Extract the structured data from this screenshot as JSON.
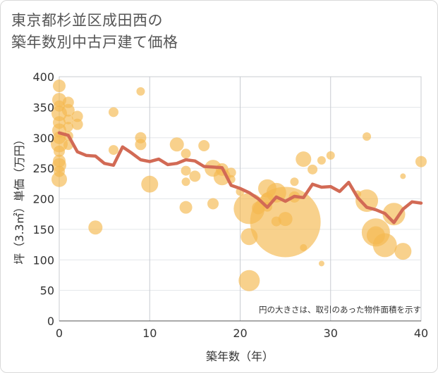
{
  "title_lines": [
    "東京都杉並区成田西の",
    "築年数別中古戸建て価格"
  ],
  "chart_data": {
    "type": "scatter",
    "xlabel": "築年数（年）",
    "ylabel": "坪（3.3㎡）単価（万円）",
    "xlim": [
      0,
      40
    ],
    "ylim": [
      0,
      400
    ],
    "xticks": [
      0,
      10,
      20,
      30,
      40
    ],
    "yticks": [
      0,
      50,
      100,
      150,
      200,
      250,
      300,
      350,
      400
    ],
    "grid": true,
    "annotation": "円の大きさは、取引のあった物件面積を示す",
    "bubble_color": "#f5b84f",
    "line_color": "#d26a55",
    "bubbles": [
      {
        "x": 0,
        "y": 385,
        "r": 9
      },
      {
        "x": 0,
        "y": 362,
        "r": 10
      },
      {
        "x": 0,
        "y": 352,
        "r": 8
      },
      {
        "x": 0,
        "y": 340,
        "r": 11
      },
      {
        "x": 0,
        "y": 325,
        "r": 9
      },
      {
        "x": 0,
        "y": 312,
        "r": 10
      },
      {
        "x": 0,
        "y": 300,
        "r": 9
      },
      {
        "x": 0,
        "y": 290,
        "r": 12
      },
      {
        "x": 0,
        "y": 278,
        "r": 8
      },
      {
        "x": 0,
        "y": 262,
        "r": 9
      },
      {
        "x": 0,
        "y": 255,
        "r": 10
      },
      {
        "x": 0,
        "y": 245,
        "r": 8
      },
      {
        "x": 0,
        "y": 232,
        "r": 11
      },
      {
        "x": 1,
        "y": 358,
        "r": 8
      },
      {
        "x": 1,
        "y": 345,
        "r": 9
      },
      {
        "x": 1,
        "y": 330,
        "r": 7
      },
      {
        "x": 1,
        "y": 318,
        "r": 7
      },
      {
        "x": 1,
        "y": 303,
        "r": 7
      },
      {
        "x": 1,
        "y": 288,
        "r": 7
      },
      {
        "x": 2,
        "y": 335,
        "r": 8
      },
      {
        "x": 2,
        "y": 322,
        "r": 8
      },
      {
        "x": 4,
        "y": 153,
        "r": 10
      },
      {
        "x": 6,
        "y": 342,
        "r": 7
      },
      {
        "x": 6,
        "y": 280,
        "r": 7
      },
      {
        "x": 9,
        "y": 376,
        "r": 6
      },
      {
        "x": 9,
        "y": 300,
        "r": 8
      },
      {
        "x": 9,
        "y": 289,
        "r": 8
      },
      {
        "x": 10,
        "y": 224,
        "r": 12
      },
      {
        "x": 13,
        "y": 289,
        "r": 10
      },
      {
        "x": 14,
        "y": 274,
        "r": 7
      },
      {
        "x": 14,
        "y": 246,
        "r": 7
      },
      {
        "x": 14,
        "y": 228,
        "r": 6
      },
      {
        "x": 14,
        "y": 186,
        "r": 9
      },
      {
        "x": 15,
        "y": 237,
        "r": 8
      },
      {
        "x": 16,
        "y": 287,
        "r": 8
      },
      {
        "x": 17,
        "y": 250,
        "r": 12
      },
      {
        "x": 17,
        "y": 192,
        "r": 8
      },
      {
        "x": 18,
        "y": 248,
        "r": 9
      },
      {
        "x": 18,
        "y": 236,
        "r": 12
      },
      {
        "x": 19,
        "y": 243,
        "r": 7
      },
      {
        "x": 19,
        "y": 232,
        "r": 6
      },
      {
        "x": 20,
        "y": 212,
        "r": 6
      },
      {
        "x": 21,
        "y": 184,
        "r": 22
      },
      {
        "x": 21,
        "y": 138,
        "r": 12
      },
      {
        "x": 21,
        "y": 66,
        "r": 15
      },
      {
        "x": 22,
        "y": 185,
        "r": 9
      },
      {
        "x": 23,
        "y": 217,
        "r": 13
      },
      {
        "x": 23,
        "y": 200,
        "r": 9
      },
      {
        "x": 23,
        "y": 187,
        "r": 7
      },
      {
        "x": 24,
        "y": 210,
        "r": 14
      },
      {
        "x": 24,
        "y": 163,
        "r": 7
      },
      {
        "x": 25,
        "y": 162,
        "r": 50
      },
      {
        "x": 25,
        "y": 167,
        "r": 10
      },
      {
        "x": 26,
        "y": 228,
        "r": 6
      },
      {
        "x": 26,
        "y": 203,
        "r": 8
      },
      {
        "x": 27,
        "y": 265,
        "r": 11
      },
      {
        "x": 27,
        "y": 120,
        "r": 5
      },
      {
        "x": 28,
        "y": 248,
        "r": 7
      },
      {
        "x": 29,
        "y": 263,
        "r": 6
      },
      {
        "x": 29,
        "y": 94,
        "r": 4
      },
      {
        "x": 30,
        "y": 271,
        "r": 6
      },
      {
        "x": 33,
        "y": 208,
        "r": 5
      },
      {
        "x": 34,
        "y": 302,
        "r": 6
      },
      {
        "x": 34,
        "y": 197,
        "r": 16
      },
      {
        "x": 35,
        "y": 145,
        "r": 20
      },
      {
        "x": 35,
        "y": 140,
        "r": 13
      },
      {
        "x": 36,
        "y": 124,
        "r": 17
      },
      {
        "x": 37,
        "y": 175,
        "r": 16
      },
      {
        "x": 38,
        "y": 237,
        "r": 4
      },
      {
        "x": 38,
        "y": 114,
        "r": 12
      },
      {
        "x": 40,
        "y": 261,
        "r": 8
      }
    ],
    "trend": [
      {
        "x": 0,
        "y": 308
      },
      {
        "x": 1,
        "y": 304
      },
      {
        "x": 2,
        "y": 277
      },
      {
        "x": 3,
        "y": 271
      },
      {
        "x": 4,
        "y": 270
      },
      {
        "x": 5,
        "y": 258
      },
      {
        "x": 6,
        "y": 255
      },
      {
        "x": 7,
        "y": 285
      },
      {
        "x": 8,
        "y": 275
      },
      {
        "x": 9,
        "y": 264
      },
      {
        "x": 10,
        "y": 261
      },
      {
        "x": 11,
        "y": 265
      },
      {
        "x": 12,
        "y": 256
      },
      {
        "x": 13,
        "y": 258
      },
      {
        "x": 14,
        "y": 264
      },
      {
        "x": 15,
        "y": 262
      },
      {
        "x": 16,
        "y": 253
      },
      {
        "x": 17,
        "y": 252
      },
      {
        "x": 18,
        "y": 251
      },
      {
        "x": 19,
        "y": 222
      },
      {
        "x": 20,
        "y": 217
      },
      {
        "x": 21,
        "y": 210
      },
      {
        "x": 22,
        "y": 200
      },
      {
        "x": 23,
        "y": 186
      },
      {
        "x": 24,
        "y": 203
      },
      {
        "x": 25,
        "y": 196
      },
      {
        "x": 26,
        "y": 204
      },
      {
        "x": 27,
        "y": 202
      },
      {
        "x": 28,
        "y": 224
      },
      {
        "x": 29,
        "y": 219
      },
      {
        "x": 30,
        "y": 220
      },
      {
        "x": 31,
        "y": 212
      },
      {
        "x": 32,
        "y": 227
      },
      {
        "x": 33,
        "y": 202
      },
      {
        "x": 34,
        "y": 186
      },
      {
        "x": 35,
        "y": 182
      },
      {
        "x": 36,
        "y": 176
      },
      {
        "x": 37,
        "y": 161
      },
      {
        "x": 38,
        "y": 183
      },
      {
        "x": 39,
        "y": 195
      },
      {
        "x": 40,
        "y": 193
      }
    ]
  }
}
